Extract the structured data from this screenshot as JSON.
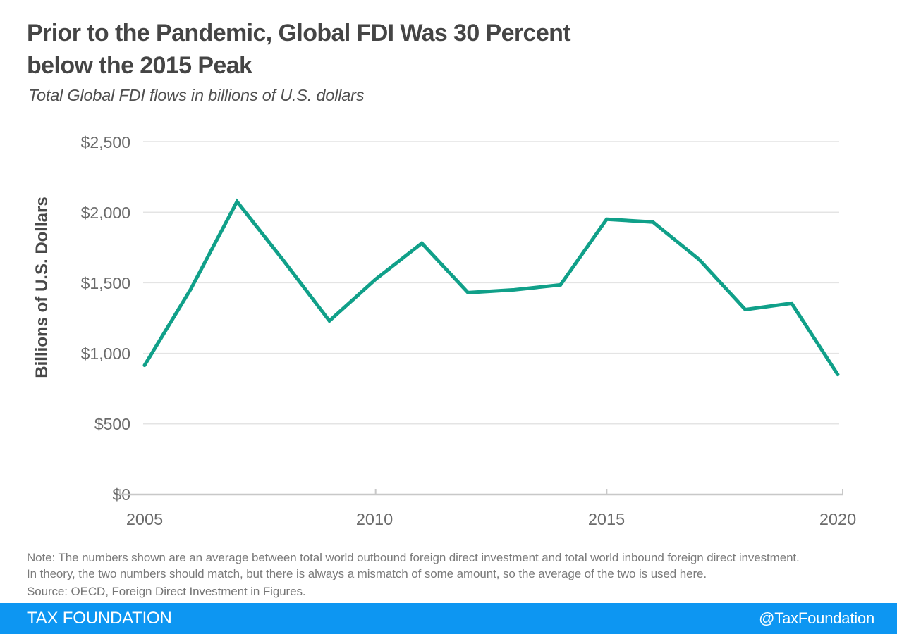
{
  "header": {
    "title_line1": "Prior to the Pandemic, Global FDI Was 30 Percent",
    "title_line2": "below the 2015 Peak",
    "subtitle": "Total Global FDI flows in billions of U.S. dollars"
  },
  "chart_data": {
    "type": "line",
    "title": "Total Global FDI flows in billions of U.S. dollars",
    "xlabel": "",
    "ylabel": "Billions of U.S. Dollars",
    "x": [
      2005,
      2006,
      2007,
      2008,
      2009,
      2010,
      2011,
      2012,
      2013,
      2014,
      2015,
      2016,
      2017,
      2018,
      2019,
      2020
    ],
    "values": [
      915,
      1455,
      2075,
      1660,
      1230,
      1525,
      1780,
      1430,
      1450,
      1485,
      1950,
      1930,
      1665,
      1310,
      1355,
      850
    ],
    "series_name": "Total Global FDI flows (billions of U.S. dollars)",
    "ylim": [
      0,
      2500
    ],
    "ytick_step": 500,
    "y_tick_labels": [
      "$2,500",
      "$2,000",
      "$1,500",
      "$1,000",
      "$500",
      "$0"
    ],
    "x_tick_labels": [
      "2005",
      "2010",
      "2015",
      "2020"
    ],
    "x_tick_years": [
      2005,
      2010,
      2015,
      2020
    ],
    "grid": true,
    "legend_position": "none",
    "line_color": "#10a089",
    "grid_color": "#e4e4e4",
    "axis_color": "#c8c8c8"
  },
  "notes": {
    "note_line1": "Note: The numbers shown are an average between total world outbound foreign direct investment and total world inbound foreign direct investment.",
    "note_line2": "In theory, the two numbers should match, but there is always a mismatch of some amount, so the average of the two is used here.",
    "source": "Source: OECD, Foreign Direct Investment in Figures."
  },
  "footer": {
    "brand": "TAX FOUNDATION",
    "handle": "@TaxFoundation",
    "bg_color": "#0d96f2",
    "text_color": "#ffffff"
  }
}
